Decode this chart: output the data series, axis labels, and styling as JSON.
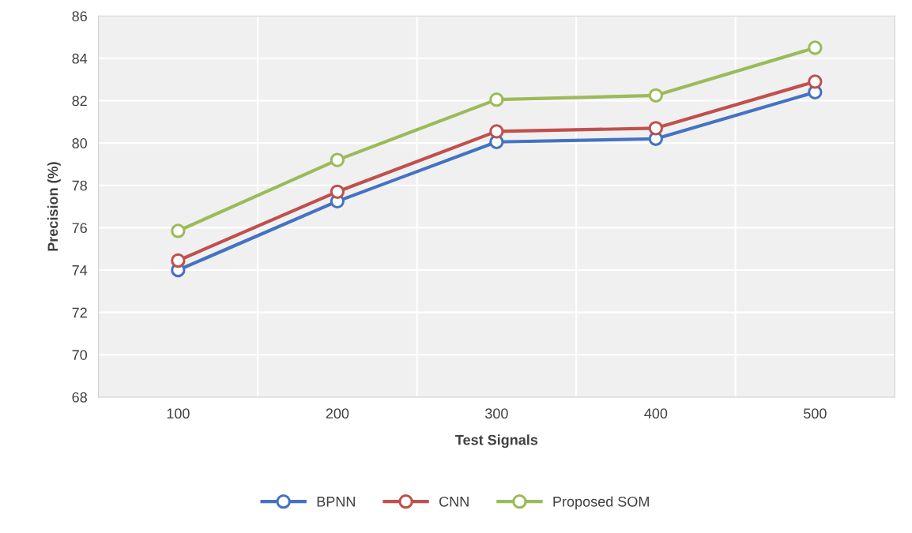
{
  "chart_data": {
    "type": "line",
    "xlabel": "Test Signals",
    "ylabel": "Precision (%)",
    "categories": [
      "100",
      "200",
      "300",
      "400",
      "500"
    ],
    "series": [
      {
        "name": "BPNN",
        "color": "#4472c4",
        "values": [
          74.0,
          77.25,
          80.05,
          80.2,
          82.4
        ]
      },
      {
        "name": "CNN",
        "color": "#c0504d",
        "values": [
          74.45,
          77.7,
          80.55,
          80.7,
          82.9
        ]
      },
      {
        "name": "Proposed SOM",
        "color": "#9bbb59",
        "values": [
          75.85,
          79.2,
          82.05,
          82.25,
          84.5
        ]
      }
    ],
    "ylim": [
      68,
      86
    ],
    "yticks": [
      68,
      70,
      72,
      74,
      76,
      78,
      80,
      82,
      84,
      86
    ],
    "grid": true,
    "legend": "bottom",
    "marker": "circle",
    "line_style": "solid"
  }
}
